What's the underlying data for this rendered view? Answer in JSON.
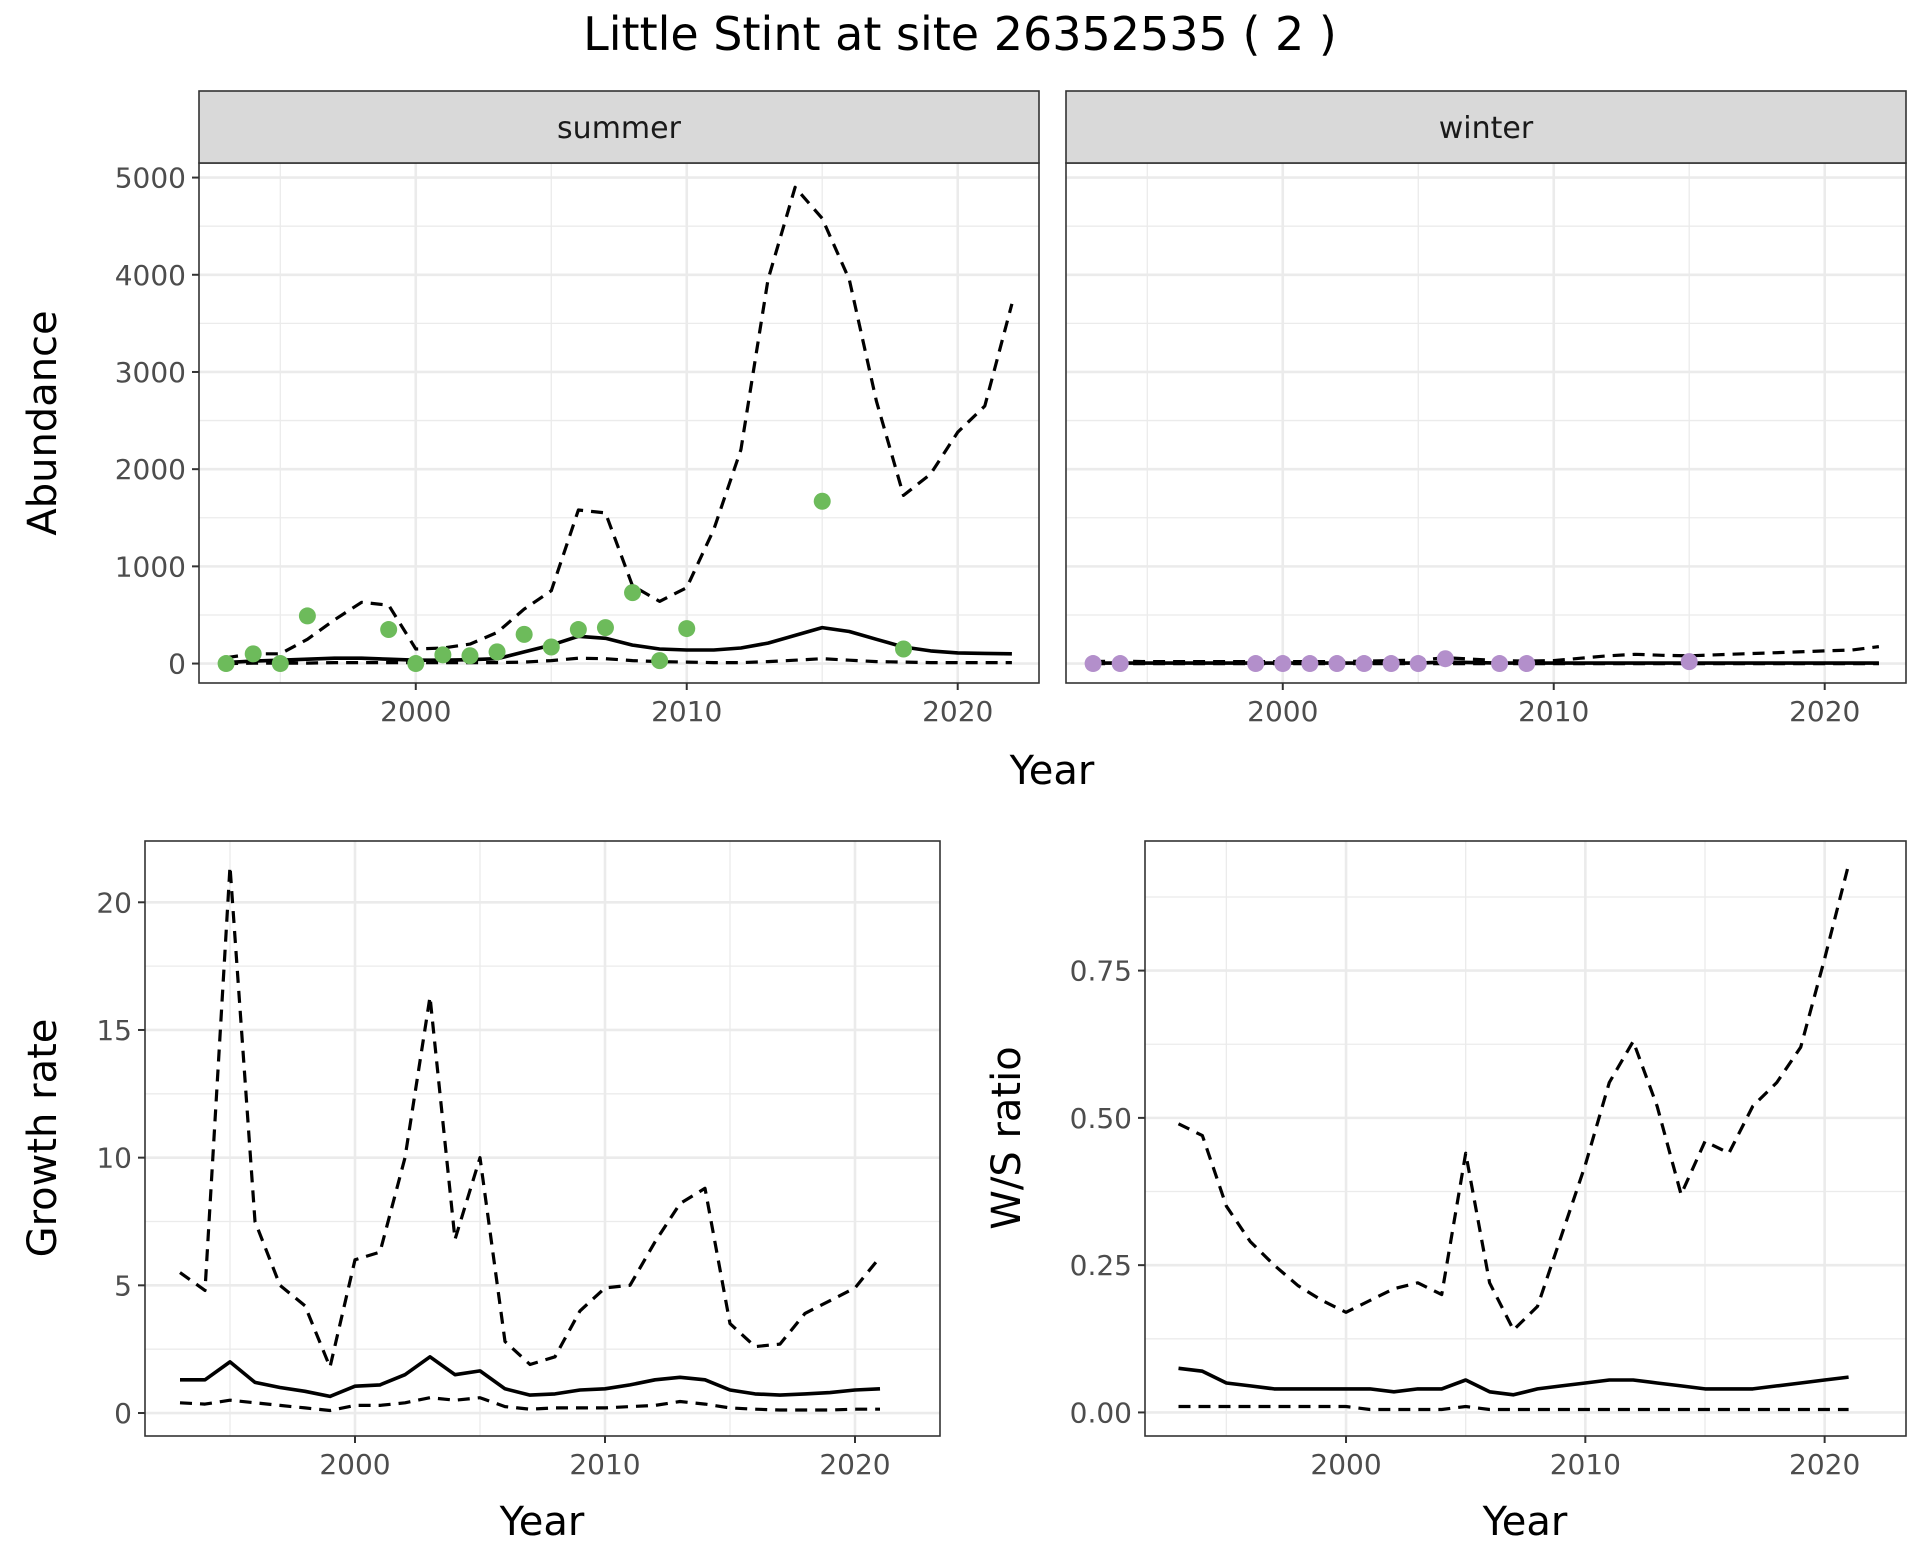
{
  "title": "Little Stint at site 26352535 ( 2 )",
  "colors": {
    "summer_points": "#6dbb5b",
    "winter_points": "#b38fcb",
    "lines": "#000000"
  },
  "chart_data": [
    {
      "type": "line",
      "panel": "summer",
      "strip_label": "summer",
      "xlabel": "Year",
      "ylabel": "Abundance",
      "xlim": [
        1992,
        2023
      ],
      "ylim": [
        -200,
        5150
      ],
      "x_ticks": [
        2000,
        2010,
        2020
      ],
      "y_ticks": [
        0,
        1000,
        2000,
        3000,
        4000,
        5000
      ],
      "grid": true,
      "x": [
        1993,
        1994,
        1995,
        1996,
        1997,
        1998,
        1999,
        2000,
        2001,
        2002,
        2003,
        2004,
        2005,
        2006,
        2007,
        2008,
        2009,
        2010,
        2011,
        2012,
        2013,
        2014,
        2015,
        2016,
        2017,
        2018,
        2019,
        2020,
        2021,
        2022
      ],
      "series": [
        {
          "style": "solid",
          "values": [
            10,
            25,
            35,
            45,
            55,
            55,
            45,
            35,
            35,
            40,
            50,
            120,
            190,
            280,
            260,
            190,
            150,
            140,
            140,
            160,
            210,
            290,
            370,
            330,
            250,
            170,
            130,
            110,
            105,
            100
          ]
        },
        {
          "style": "dashed",
          "values": [
            60,
            100,
            100,
            250,
            450,
            630,
            600,
            150,
            160,
            200,
            320,
            560,
            750,
            1580,
            1550,
            800,
            640,
            780,
            1380,
            2200,
            3950,
            4900,
            4580,
            3950,
            2700,
            1730,
            1950,
            2380,
            2650,
            3700
          ]
        },
        {
          "style": "dashed",
          "values": [
            0,
            5,
            5,
            5,
            10,
            10,
            10,
            10,
            10,
            10,
            10,
            15,
            30,
            55,
            50,
            30,
            20,
            15,
            10,
            10,
            20,
            35,
            50,
            35,
            20,
            15,
            10,
            10,
            10,
            10
          ]
        }
      ],
      "points": {
        "x": [
          1993,
          1994,
          1995,
          1996,
          1999,
          2000,
          2001,
          2002,
          2003,
          2004,
          2005,
          2006,
          2007,
          2008,
          2009,
          2010,
          2015,
          2018
        ],
        "y": [
          0,
          100,
          0,
          490,
          350,
          0,
          90,
          80,
          120,
          300,
          170,
          350,
          370,
          730,
          30,
          360,
          1670,
          150
        ]
      }
    },
    {
      "type": "line",
      "panel": "winter",
      "strip_label": "winter",
      "xlabel": "Year",
      "ylabel": "",
      "xlim": [
        1992,
        2023
      ],
      "ylim": [
        -200,
        5150
      ],
      "x_ticks": [
        2000,
        2010,
        2020
      ],
      "y_ticks": [],
      "grid": true,
      "x": [
        1993,
        1994,
        1995,
        1996,
        1997,
        1998,
        1999,
        2000,
        2001,
        2002,
        2003,
        2004,
        2005,
        2006,
        2007,
        2008,
        2009,
        2010,
        2011,
        2012,
        2013,
        2014,
        2015,
        2016,
        2017,
        2018,
        2019,
        2020,
        2021,
        2022
      ],
      "series": [
        {
          "style": "solid",
          "values": [
            5,
            5,
            5,
            5,
            5,
            5,
            5,
            5,
            5,
            5,
            5,
            5,
            5,
            15,
            10,
            5,
            5,
            5,
            5,
            5,
            5,
            5,
            5,
            5,
            5,
            5,
            5,
            5,
            5,
            5
          ]
        },
        {
          "style": "dashed",
          "values": [
            20,
            25,
            20,
            20,
            20,
            20,
            20,
            20,
            20,
            20,
            25,
            30,
            35,
            60,
            45,
            30,
            25,
            30,
            55,
            80,
            95,
            85,
            80,
            90,
            100,
            110,
            120,
            130,
            140,
            175
          ]
        },
        {
          "style": "dashed",
          "values": [
            0,
            0,
            0,
            0,
            0,
            0,
            0,
            0,
            0,
            0,
            0,
            0,
            0,
            0,
            0,
            0,
            0,
            0,
            0,
            0,
            0,
            0,
            0,
            0,
            0,
            0,
            0,
            0,
            0,
            0
          ]
        }
      ],
      "points": {
        "x": [
          1993,
          1994,
          1999,
          2000,
          2001,
          2002,
          2003,
          2004,
          2005,
          2006,
          2008,
          2009,
          2015
        ],
        "y": [
          0,
          0,
          0,
          0,
          0,
          0,
          0,
          0,
          0,
          50,
          0,
          0,
          20
        ]
      }
    },
    {
      "type": "line",
      "panel": "growth",
      "xlabel": "Year",
      "ylabel": "Growth rate",
      "xlim": [
        1991.6,
        2023.4
      ],
      "ylim": [
        -0.9,
        22.4
      ],
      "x_ticks": [
        2000,
        2010,
        2020
      ],
      "y_ticks": [
        0,
        5,
        10,
        15,
        20
      ],
      "grid": true,
      "x": [
        1993,
        1994,
        1995,
        1996,
        1997,
        1998,
        1999,
        2000,
        2001,
        2002,
        2003,
        2004,
        2005,
        2006,
        2007,
        2008,
        2009,
        2010,
        2011,
        2012,
        2013,
        2014,
        2015,
        2016,
        2017,
        2018,
        2019,
        2020,
        2021
      ],
      "series": [
        {
          "style": "solid",
          "values": [
            1.3,
            1.3,
            2.0,
            1.2,
            1.0,
            0.85,
            0.65,
            1.05,
            1.1,
            1.5,
            2.2,
            1.5,
            1.65,
            0.95,
            0.7,
            0.75,
            0.9,
            0.95,
            1.1,
            1.3,
            1.4,
            1.3,
            0.9,
            0.75,
            0.7,
            0.75,
            0.8,
            0.9,
            0.95
          ]
        },
        {
          "style": "dashed",
          "values": [
            5.5,
            4.8,
            21.4,
            7.5,
            5.0,
            4.2,
            1.8,
            6.0,
            6.3,
            10.0,
            16.3,
            6.8,
            10.0,
            2.8,
            1.9,
            2.2,
            4.0,
            4.9,
            5.0,
            6.7,
            8.2,
            8.8,
            3.5,
            2.6,
            2.7,
            3.9,
            4.4,
            4.9,
            6.1
          ]
        },
        {
          "style": "dashed",
          "values": [
            0.4,
            0.35,
            0.5,
            0.4,
            0.3,
            0.2,
            0.1,
            0.3,
            0.3,
            0.4,
            0.6,
            0.5,
            0.6,
            0.25,
            0.15,
            0.2,
            0.2,
            0.2,
            0.25,
            0.3,
            0.45,
            0.35,
            0.2,
            0.15,
            0.12,
            0.12,
            0.12,
            0.15,
            0.15
          ]
        }
      ]
    },
    {
      "type": "line",
      "panel": "ratio",
      "xlabel": "Year",
      "ylabel": "W/S ratio",
      "xlim": [
        1991.6,
        2023.4
      ],
      "ylim": [
        -0.04,
        0.97
      ],
      "x_ticks": [
        2000,
        2010,
        2020
      ],
      "y_ticks": [
        0.0,
        0.25,
        0.5,
        0.75
      ],
      "y_tick_labels": [
        "0.00",
        "0.25",
        "0.50",
        "0.75"
      ],
      "grid": true,
      "x": [
        1993,
        1994,
        1995,
        1996,
        1997,
        1998,
        1999,
        2000,
        2001,
        2002,
        2003,
        2004,
        2005,
        2006,
        2007,
        2008,
        2009,
        2010,
        2011,
        2012,
        2013,
        2014,
        2015,
        2016,
        2017,
        2018,
        2019,
        2020,
        2021
      ],
      "series": [
        {
          "style": "solid",
          "values": [
            0.075,
            0.07,
            0.05,
            0.045,
            0.04,
            0.04,
            0.04,
            0.04,
            0.04,
            0.035,
            0.04,
            0.04,
            0.055,
            0.035,
            0.03,
            0.04,
            0.045,
            0.05,
            0.055,
            0.055,
            0.05,
            0.045,
            0.04,
            0.04,
            0.04,
            0.045,
            0.05,
            0.055,
            0.06
          ]
        },
        {
          "style": "dashed",
          "values": [
            0.49,
            0.47,
            0.35,
            0.29,
            0.25,
            0.215,
            0.19,
            0.17,
            0.19,
            0.21,
            0.22,
            0.2,
            0.44,
            0.22,
            0.14,
            0.18,
            0.3,
            0.42,
            0.56,
            0.63,
            0.52,
            0.37,
            0.46,
            0.44,
            0.52,
            0.56,
            0.62,
            0.77,
            0.93
          ]
        },
        {
          "style": "dashed",
          "values": [
            0.01,
            0.01,
            0.01,
            0.01,
            0.01,
            0.01,
            0.01,
            0.01,
            0.005,
            0.005,
            0.005,
            0.005,
            0.01,
            0.005,
            0.005,
            0.005,
            0.005,
            0.005,
            0.005,
            0.005,
            0.005,
            0.005,
            0.005,
            0.005,
            0.005,
            0.005,
            0.005,
            0.005,
            0.005
          ]
        }
      ]
    }
  ]
}
